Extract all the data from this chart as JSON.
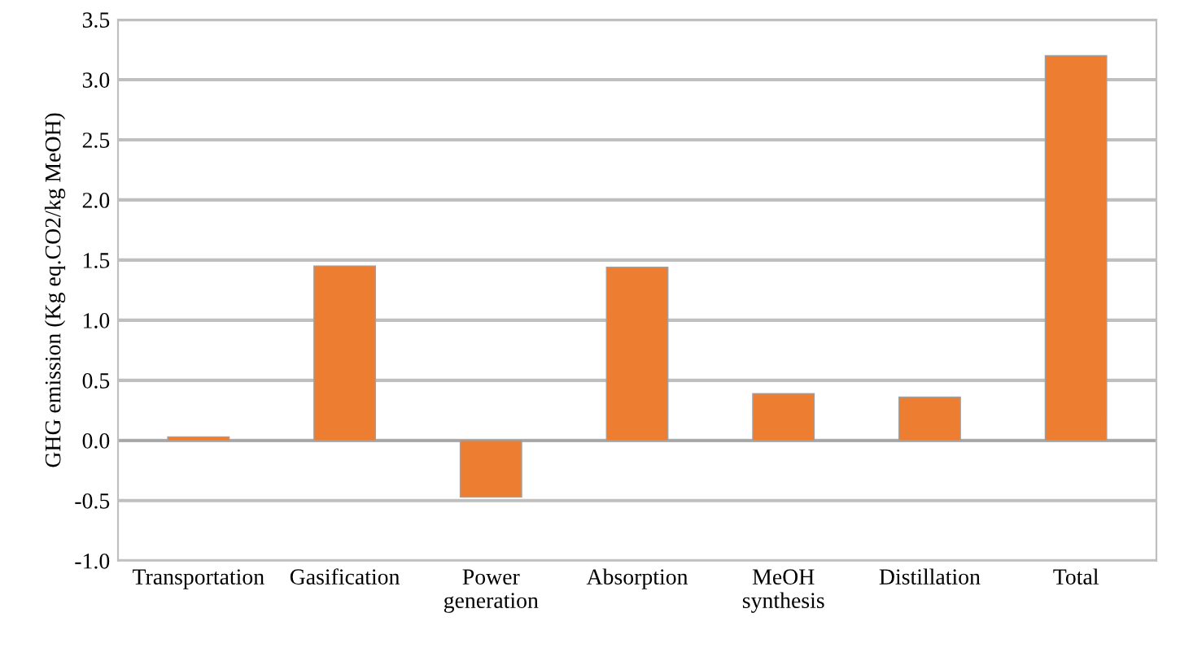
{
  "chart_data": {
    "type": "bar",
    "ylabel": "GHG emission (Kg eq.CO2/kg MeOH)",
    "categories": [
      "Transportation",
      "Gasification",
      "Power\ngeneration",
      "Absorption",
      "MeOH\nsynthesis",
      "Distillation",
      "Total"
    ],
    "values": [
      0.03,
      1.45,
      -0.47,
      1.44,
      0.39,
      0.36,
      3.2
    ],
    "color": "#ed7d31",
    "ylim": [
      -1.0,
      3.5
    ],
    "yticks": [
      {
        "value": -1.0,
        "label": "-1.0"
      },
      {
        "value": -0.5,
        "label": "-0.5"
      },
      {
        "value": 0,
        "label": "0.0"
      },
      {
        "value": 0.5,
        "label": "0.5"
      },
      {
        "value": 1.0,
        "label": "1.0"
      },
      {
        "value": 1.5,
        "label": "1.5"
      },
      {
        "value": 2.0,
        "label": "2.0"
      },
      {
        "value": 2.5,
        "label": "2.5"
      },
      {
        "value": 3.0,
        "label": "3.0"
      },
      {
        "value": 3.5,
        "label": "3.5"
      }
    ],
    "grid": "y",
    "legend": false
  }
}
